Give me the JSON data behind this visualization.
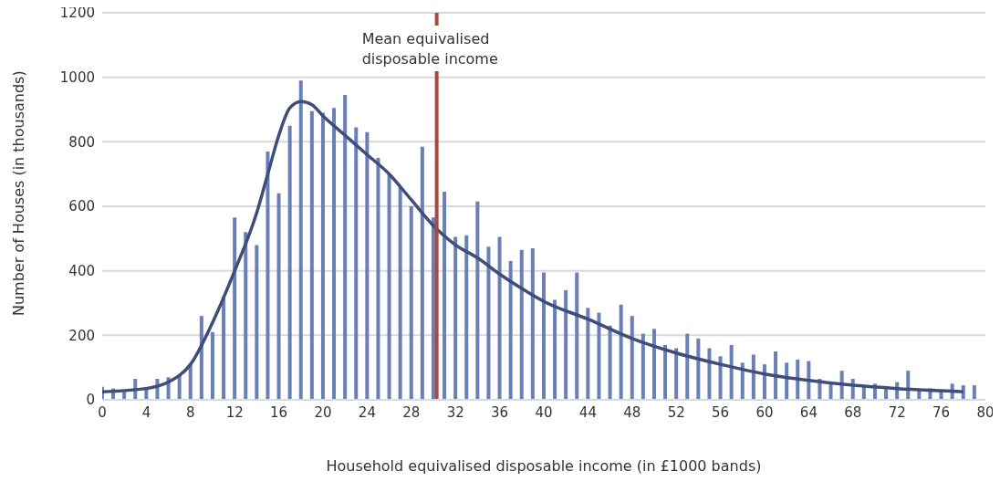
{
  "chart_data": {
    "type": "bar",
    "xlabel": "Household equivalised disposable income (in £1000 bands)",
    "ylabel": "Number of Houses (in thousands)",
    "xlim": [
      0,
      80
    ],
    "xticks": [
      0,
      4,
      8,
      12,
      16,
      20,
      24,
      28,
      32,
      36,
      40,
      44,
      48,
      52,
      56,
      60,
      64,
      68,
      72,
      76,
      80
    ],
    "ylim": [
      0,
      1200
    ],
    "yticks": [
      0,
      200,
      400,
      600,
      800,
      1000,
      1200
    ],
    "grid": "y",
    "legend": false,
    "series": [
      {
        "color": "#6a7fb5",
        "x": [
          0,
          1,
          2,
          3,
          4,
          5,
          6,
          7,
          8,
          9,
          10,
          11,
          12,
          13,
          14,
          15,
          16,
          17,
          18,
          19,
          20,
          21,
          22,
          23,
          24,
          25,
          26,
          27,
          28,
          29,
          30,
          31,
          32,
          33,
          34,
          35,
          36,
          37,
          38,
          39,
          40,
          41,
          42,
          43,
          44,
          45,
          46,
          47,
          48,
          49,
          50,
          51,
          52,
          53,
          54,
          55,
          56,
          57,
          58,
          59,
          60,
          61,
          62,
          63,
          64,
          65,
          66,
          67,
          68,
          69,
          70,
          71,
          72,
          73,
          74,
          75,
          76,
          77,
          78,
          79
        ],
        "values": [
          40,
          35,
          25,
          65,
          40,
          65,
          70,
          75,
          110,
          260,
          210,
          320,
          565,
          520,
          480,
          770,
          640,
          850,
          990,
          895,
          890,
          905,
          945,
          845,
          830,
          750,
          700,
          660,
          600,
          785,
          565,
          645,
          505,
          510,
          615,
          475,
          505,
          430,
          465,
          470,
          395,
          310,
          340,
          395,
          285,
          270,
          230,
          295,
          260,
          205,
          220,
          170,
          160,
          205,
          190,
          160,
          135,
          170,
          115,
          140,
          110,
          150,
          115,
          125,
          120,
          65,
          55,
          90,
          65,
          45,
          50,
          40,
          55,
          90,
          30,
          35,
          30,
          50,
          45,
          45
        ]
      },
      {
        "type": "line",
        "color": "#3f4d7a",
        "x": [
          0,
          4,
          6,
          8,
          10,
          12,
          14,
          15,
          16,
          17,
          18,
          19,
          20,
          22,
          24,
          26,
          28,
          30,
          32,
          34,
          36,
          38,
          40,
          44,
          48,
          52,
          56,
          60,
          64,
          68,
          72,
          76,
          78
        ],
        "values": [
          25,
          35,
          55,
          110,
          240,
          400,
          580,
          700,
          820,
          905,
          925,
          915,
          880,
          820,
          760,
          700,
          620,
          540,
          480,
          440,
          390,
          345,
          305,
          250,
          190,
          145,
          110,
          80,
          60,
          45,
          35,
          28,
          25
        ]
      }
    ],
    "ref_lines": [
      {
        "axis": "x",
        "value": 30.3,
        "label": "Mean equivalised disposable income",
        "color": "#a84a42"
      }
    ]
  }
}
